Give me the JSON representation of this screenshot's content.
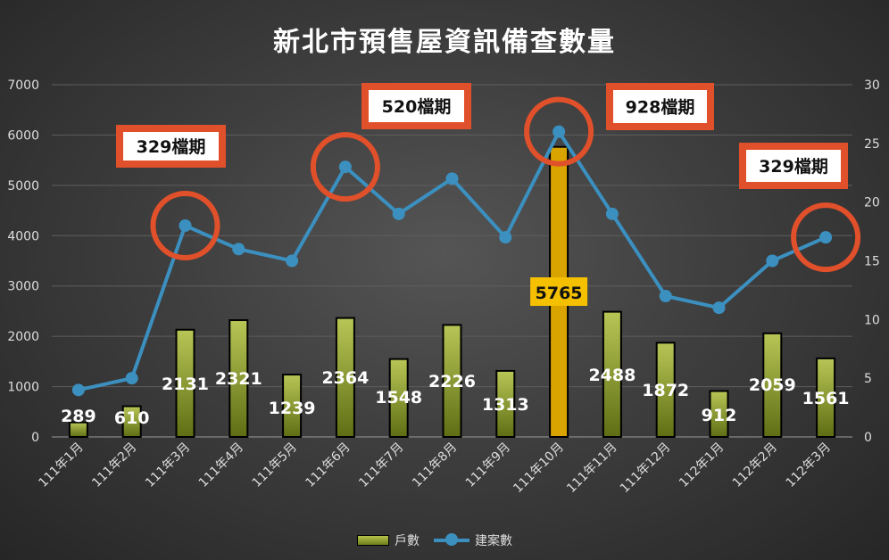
{
  "chart_data": {
    "type": "bar+line",
    "title": "新北市預售屋資訊備查數量",
    "categories": [
      "111年1月",
      "111年2月",
      "111年3月",
      "111年4月",
      "111年5月",
      "111年6月",
      "111年7月",
      "111年8月",
      "111年9月",
      "111年10月",
      "111年11月",
      "111年12月",
      "112年1月",
      "112年2月",
      "112年3月"
    ],
    "series": [
      {
        "name": "戶數",
        "type": "bar",
        "axis": "left",
        "color": "#9aab2e",
        "highlight_color": "#d9a400",
        "highlight_index": 9,
        "values": [
          289,
          610,
          2131,
          2321,
          1239,
          2364,
          1548,
          2226,
          1313,
          5765,
          2488,
          1872,
          912,
          2059,
          1561
        ]
      },
      {
        "name": "建案數",
        "type": "line",
        "axis": "right",
        "color": "#3b90c0",
        "values": [
          4,
          5,
          18,
          16,
          15,
          23,
          19,
          22,
          17,
          26,
          19,
          12,
          11,
          15,
          17
        ]
      }
    ],
    "left_axis": {
      "range": [
        0,
        7000
      ],
      "ticks": [
        "0",
        "1000",
        "2000",
        "3000",
        "4000",
        "5000",
        "6000",
        "7000"
      ]
    },
    "right_axis": {
      "range": [
        0,
        30
      ],
      "ticks": [
        "0",
        "5",
        "10",
        "15",
        "20",
        "25",
        "30"
      ]
    },
    "grid": true,
    "legend_position": "bottom",
    "annotations": [
      {
        "index": 2,
        "text": "329檔期"
      },
      {
        "index": 5,
        "text": "520檔期"
      },
      {
        "index": 9,
        "text": "928檔期"
      },
      {
        "index": 14,
        "text": "329檔期"
      }
    ],
    "annotation_color": "#e0502a"
  }
}
